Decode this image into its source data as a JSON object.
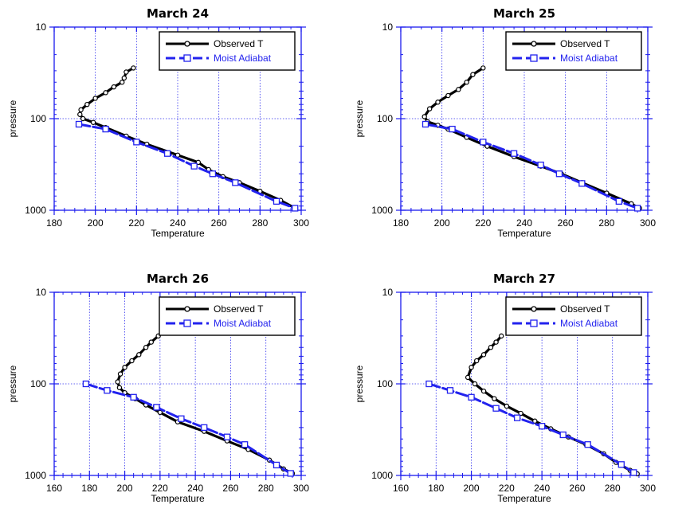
{
  "chart_data": [
    {
      "type": "line",
      "title": "March 24",
      "xlabel": "Temperature",
      "ylabel": "pressure",
      "xlim": [
        180,
        300
      ],
      "xticks": [
        180,
        200,
        220,
        240,
        260,
        280,
        300
      ],
      "ylim": [
        10,
        1000
      ],
      "y_scale": "log",
      "y_inverted": true,
      "yticks": [
        10,
        100,
        1000
      ],
      "grid": true,
      "legend": "top-right",
      "series": [
        {
          "name": "Observed T",
          "color": "#000000",
          "marker": "circle",
          "x": [
            218.5,
            215,
            214,
            213,
            209,
            205,
            200,
            196,
            193,
            192.5,
            194,
            199,
            205,
            215,
            225,
            240,
            250,
            255,
            262,
            270,
            280,
            290,
            297
          ],
          "y": [
            28,
            31,
            36,
            40,
            45,
            52,
            60,
            70,
            80,
            90,
            100,
            110,
            125,
            155,
            190,
            250,
            300,
            360,
            430,
            500,
            620,
            780,
            950
          ]
        },
        {
          "name": "Moist Adiabat",
          "color": "#2222ee",
          "marker": "square",
          "x": [
            192,
            205,
            220,
            235,
            248,
            257,
            268,
            288,
            297
          ],
          "y": [
            115,
            130,
            180,
            240,
            330,
            400,
            500,
            800,
            950
          ]
        }
      ]
    },
    {
      "type": "line",
      "title": "March 25",
      "xlabel": "Temperature",
      "ylabel": "pressure",
      "xlim": [
        180,
        300
      ],
      "xticks": [
        180,
        200,
        220,
        240,
        260,
        280,
        300
      ],
      "ylim": [
        10,
        1000
      ],
      "y_scale": "log",
      "y_inverted": true,
      "yticks": [
        10,
        100,
        1000
      ],
      "grid": true,
      "legend": "top-right",
      "series": [
        {
          "name": "Observed T",
          "color": "#000000",
          "marker": "circle",
          "x": [
            220,
            215,
            212,
            208,
            203,
            198,
            194,
            191.5,
            193,
            198,
            203,
            212,
            222,
            235,
            248,
            258,
            268,
            280,
            292,
            296
          ],
          "y": [
            28,
            33,
            40,
            48,
            56,
            66,
            78,
            95,
            108,
            118,
            130,
            160,
            200,
            260,
            330,
            400,
            500,
            650,
            850,
            950
          ]
        },
        {
          "name": "Moist Adiabat",
          "color": "#2222ee",
          "marker": "square",
          "x": [
            192,
            205,
            220,
            235,
            248,
            257,
            268,
            286,
            295
          ],
          "y": [
            115,
            130,
            180,
            240,
            320,
            400,
            510,
            800,
            950
          ]
        }
      ]
    },
    {
      "type": "line",
      "title": "March 26",
      "xlabel": "Temperature",
      "ylabel": "pressure",
      "xlim": [
        160,
        300
      ],
      "xticks": [
        160,
        180,
        200,
        220,
        240,
        260,
        280,
        300
      ],
      "ylim": [
        10,
        1000
      ],
      "y_scale": "log",
      "y_inverted": true,
      "yticks": [
        10,
        100,
        1000
      ],
      "grid": true,
      "legend": "top-right",
      "series": [
        {
          "name": "Observed T",
          "color": "#000000",
          "marker": "circle",
          "x": [
            219,
            215,
            212,
            208,
            204,
            200,
            197.5,
            196,
            197,
            200,
            206,
            212,
            220,
            230,
            245,
            258,
            270,
            282,
            290,
            295
          ],
          "y": [
            30,
            35,
            40,
            48,
            56,
            66,
            78,
            95,
            110,
            125,
            145,
            170,
            205,
            260,
            330,
            420,
            520,
            680,
            850,
            950
          ]
        },
        {
          "name": "Moist Adiabat",
          "color": "#2222ee",
          "marker": "square",
          "x": [
            178,
            190,
            205,
            218,
            232,
            245,
            258,
            268,
            286,
            294
          ],
          "y": [
            100,
            118,
            140,
            180,
            240,
            300,
            380,
            460,
            770,
            950
          ]
        }
      ]
    },
    {
      "type": "line",
      "title": "March 27",
      "xlabel": "Temperature",
      "ylabel": "pressure",
      "xlim": [
        160,
        300
      ],
      "xticks": [
        160,
        180,
        200,
        220,
        240,
        260,
        280,
        300
      ],
      "ylim": [
        10,
        1000
      ],
      "y_scale": "log",
      "y_inverted": true,
      "yticks": [
        10,
        100,
        1000
      ],
      "grid": true,
      "legend": "top-right",
      "series": [
        {
          "name": "Observed T",
          "color": "#000000",
          "marker": "circle",
          "x": [
            217,
            214,
            211,
            207,
            203,
            200,
            198,
            202,
            207,
            213,
            220,
            228,
            236,
            245,
            255,
            265,
            275,
            282,
            290,
            294
          ],
          "y": [
            30,
            35,
            40,
            48,
            56,
            66,
            85,
            100,
            120,
            145,
            175,
            210,
            255,
            310,
            380,
            460,
            580,
            720,
            880,
            960
          ]
        },
        {
          "name": "Moist Adiabat",
          "color": "#2222ee",
          "marker": "square",
          "x": [
            176,
            188,
            200,
            214,
            226,
            240,
            252,
            266,
            285,
            292
          ],
          "y": [
            100,
            118,
            140,
            185,
            235,
            290,
            360,
            460,
            760,
            930
          ]
        }
      ]
    }
  ]
}
